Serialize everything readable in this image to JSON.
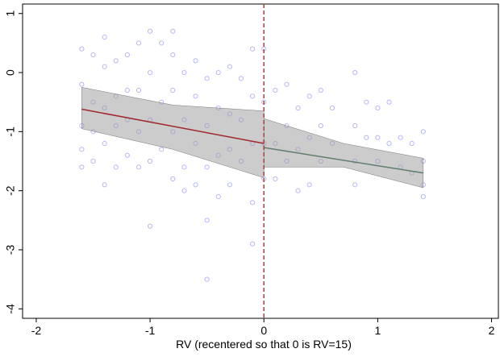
{
  "chart_data": {
    "type": "scatter",
    "xlabel": "RV (recentered so that 0 is RV=15)",
    "xlim": [
      -2.12,
      2.06
    ],
    "ylim": [
      -4.16,
      1.16
    ],
    "xticks": [
      -2,
      -1,
      0,
      1,
      2
    ],
    "yticks": [
      1,
      0,
      -1,
      -2,
      -3,
      -4
    ],
    "points": {
      "color": "#3333ee",
      "x": [
        -1.6,
        -1.6,
        -1.6,
        -1.6,
        -1.6,
        -1.5,
        -1.5,
        -1.5,
        -1.5,
        -1.4,
        -1.4,
        -1.4,
        -1.4,
        -1.4,
        -1.3,
        -1.3,
        -1.3,
        -1.3,
        -1.2,
        -1.2,
        -1.2,
        -1.2,
        -1.1,
        -1.1,
        -1.1,
        -1.1,
        -1.0,
        -1.0,
        -1.0,
        -1.0,
        -1.0,
        -0.9,
        -0.9,
        -0.9,
        -0.8,
        -0.8,
        -0.8,
        -0.8,
        -0.8,
        -0.7,
        -0.7,
        -0.7,
        -0.7,
        -0.6,
        -0.6,
        -0.6,
        -0.6,
        -0.5,
        -0.5,
        -0.5,
        -0.5,
        -0.5,
        -0.4,
        -0.4,
        -0.4,
        -0.4,
        -0.3,
        -0.3,
        -0.3,
        -0.3,
        -0.2,
        -0.2,
        -0.2,
        -0.1,
        -0.1,
        -0.1,
        -0.1,
        -0.1,
        0,
        0,
        0,
        0,
        0.1,
        0.1,
        0.1,
        0.2,
        0.2,
        0.2,
        0.3,
        0.3,
        0.3,
        0.4,
        0.4,
        0.4,
        0.5,
        0.5,
        0.5,
        0.6,
        0.6,
        0.8,
        0.8,
        0.8,
        0.8,
        0.9,
        0.9,
        1.0,
        1.0,
        1.0,
        1.1,
        1.1,
        1.2,
        1.2,
        1.3,
        1.3,
        1.4,
        1.4,
        1.4,
        1.4
      ],
      "y": [
        0.4,
        -0.2,
        -0.9,
        -1.3,
        -1.6,
        0.3,
        -0.5,
        -1.0,
        -1.5,
        0.6,
        0.1,
        -0.6,
        -1.2,
        -1.9,
        0.2,
        -0.4,
        -0.9,
        -1.6,
        0.3,
        -0.3,
        -0.8,
        -1.4,
        0.5,
        -0.3,
        -1.0,
        -1.6,
        0.7,
        0.0,
        -0.8,
        -1.5,
        -2.6,
        0.5,
        -0.5,
        -1.3,
        0.7,
        0.3,
        -0.3,
        -1.0,
        -1.8,
        0.0,
        -0.8,
        -1.6,
        -2.0,
        0.2,
        -0.4,
        -1.2,
        -1.9,
        -0.1,
        -0.9,
        -1.6,
        -2.5,
        -3.5,
        0.0,
        -0.6,
        -1.4,
        -2.1,
        0.1,
        -0.7,
        -1.3,
        -1.9,
        -0.1,
        -0.8,
        -1.5,
        0.4,
        -0.4,
        -1.2,
        -2.2,
        -2.9,
        0.4,
        -0.5,
        -1.2,
        -1.8,
        -0.3,
        -1.2,
        -1.8,
        -0.2,
        -0.9,
        -1.5,
        -0.6,
        -1.3,
        -2.0,
        -0.4,
        -1.1,
        -1.9,
        -0.3,
        -0.9,
        -1.5,
        -0.6,
        -1.2,
        0.0,
        -0.9,
        -1.5,
        -1.9,
        -0.5,
        -1.1,
        -0.6,
        -1.1,
        -1.5,
        -0.5,
        -1.2,
        -1.1,
        -1.6,
        -1.2,
        -1.7,
        -1.0,
        -1.5,
        -1.9,
        -2.1
      ]
    },
    "bands": [
      {
        "color": "#999999",
        "x": [
          -1.6,
          -0.8,
          0
        ],
        "lower": [
          -0.95,
          -1.3,
          -1.78
        ],
        "upper": [
          -0.25,
          -0.55,
          -0.65
        ]
      },
      {
        "color": "#999999",
        "x": [
          0,
          0.7,
          1.4
        ],
        "lower": [
          -1.6,
          -1.6,
          -1.95
        ],
        "upper": [
          -0.78,
          -1.2,
          -1.45
        ]
      }
    ],
    "fits": [
      {
        "color": "#a0282d",
        "x": [
          -1.6,
          0
        ],
        "y": [
          -0.62,
          -1.2
        ]
      },
      {
        "color": "#5e7e6e",
        "x": [
          0,
          1.4
        ],
        "y": [
          -1.27,
          -1.7
        ]
      }
    ],
    "cutoff": 0,
    "cutoff_color": "#c0392b"
  }
}
